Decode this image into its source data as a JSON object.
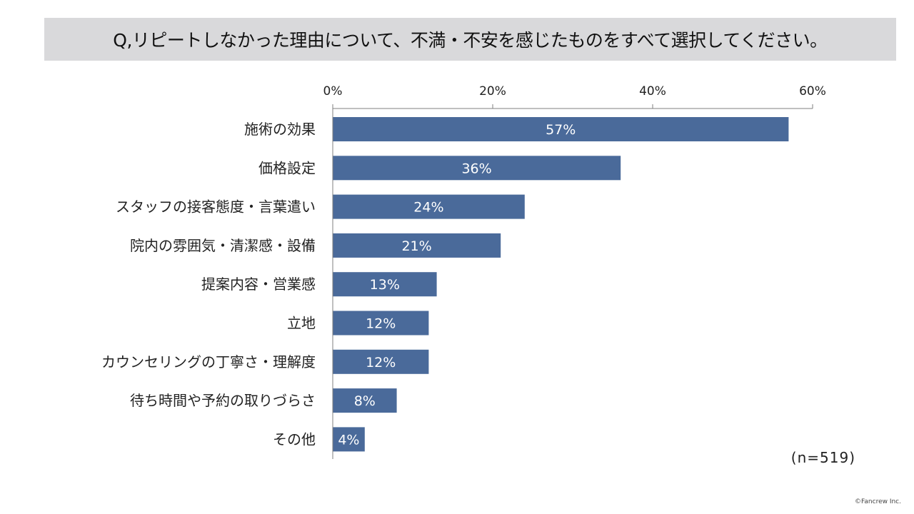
{
  "chart_data": {
    "type": "bar",
    "orientation": "horizontal",
    "title": "Q,リピートしなかった理由について、不満・不安を感じたものをすべて選択してください。",
    "categories": [
      "施術の効果",
      "価格設定",
      "スタッフの接客態度・言葉遣い",
      "院内の雰囲気・清潔感・設備",
      "提案内容・営業感",
      "立地",
      "カウンセリングの丁寧さ・理解度",
      "待ち時間や予約の取りづらさ",
      "その他"
    ],
    "values": [
      57,
      36,
      24,
      21,
      13,
      12,
      12,
      8,
      4
    ],
    "value_labels": [
      "57%",
      "36%",
      "24%",
      "21%",
      "13%",
      "12%",
      "12%",
      "8%",
      "4%"
    ],
    "x_ticks": [
      0,
      20,
      40,
      60
    ],
    "x_tick_labels": [
      "0%",
      "20%",
      "40%",
      "60%"
    ],
    "xlim": [
      0,
      60
    ],
    "bar_color": "#4a6a9a",
    "xlabel": "",
    "ylabel": "",
    "grid": false,
    "axis_position": "top",
    "sample_size": "(n=519)"
  },
  "footer": {
    "copyright": "©Fancrew Inc."
  }
}
